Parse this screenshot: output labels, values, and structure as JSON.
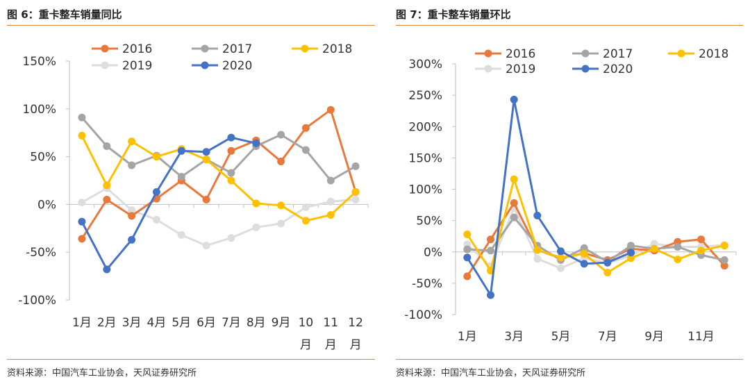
{
  "charts": [
    {
      "title": "图 6：重卡整车销量同比",
      "source": "资料来源：中国汽车工业协会，天风证券研究所"
    },
    {
      "title": "图 7：重卡整车销量环比",
      "source": "资料来源：中国汽车工业协会，天风证券研究所"
    }
  ],
  "chart_data": [
    {
      "type": "line",
      "title": "图 6：重卡整车销量同比",
      "categories": [
        "1月",
        "2月",
        "3月",
        "4月",
        "5月",
        "6月",
        "7月",
        "8月",
        "9月",
        "10月",
        "11月",
        "12月"
      ],
      "y_ticks": [
        "150%",
        "100%",
        "50%",
        "0%",
        "-50%",
        "-100%"
      ],
      "ylim": [
        -100,
        150
      ],
      "legend_position": "top",
      "series": [
        {
          "name": "2016",
          "color": "#E9793A",
          "values": [
            -36,
            5,
            -12,
            6,
            25,
            5,
            56,
            67,
            45,
            80,
            99,
            13
          ]
        },
        {
          "name": "2017",
          "color": "#A5A5A5",
          "values": [
            91,
            61,
            41,
            51,
            29,
            47,
            33,
            61,
            73,
            57,
            25,
            40
          ]
        },
        {
          "name": "2018",
          "color": "#FFC000",
          "values": [
            72,
            20,
            66,
            50,
            58,
            47,
            25,
            1,
            -1,
            -17,
            -11,
            13
          ]
        },
        {
          "name": "2019",
          "color": "#DDDDDD",
          "values": [
            2,
            17,
            -6,
            -16,
            -32,
            -43,
            -35,
            -24,
            -20,
            -3,
            3,
            5
          ]
        },
        {
          "name": "2020",
          "color": "#4472C4",
          "values": [
            -18,
            -68,
            -37,
            13,
            56,
            55,
            70,
            64,
            null,
            null,
            null,
            null
          ]
        }
      ]
    },
    {
      "type": "line",
      "title": "图 7：重卡整车销量环比",
      "categories": [
        "1月",
        "2月",
        "3月",
        "4月",
        "5月",
        "6月",
        "7月",
        "8月",
        "9月",
        "10月",
        "11月",
        "12月"
      ],
      "x_tick_labels": [
        "1月",
        "",
        "3月",
        "",
        "5月",
        "",
        "7月",
        "",
        "9月",
        "",
        "11月",
        ""
      ],
      "y_ticks": [
        "300%",
        "250%",
        "200%",
        "150%",
        "100%",
        "50%",
        "0%",
        "-50%",
        "-100%"
      ],
      "ylim": [
        -100,
        300
      ],
      "legend_position": "top",
      "series": [
        {
          "name": "2016",
          "color": "#E9793A",
          "values": [
            -39,
            20,
            78,
            3,
            -10,
            -2,
            -13,
            5,
            2,
            16,
            20,
            -22
          ]
        },
        {
          "name": "2017",
          "color": "#A5A5A5",
          "values": [
            4,
            2,
            55,
            10,
            -13,
            6,
            -16,
            10,
            5,
            8,
            -5,
            -13
          ]
        },
        {
          "name": "2018",
          "color": "#FFC000",
          "values": [
            28,
            -30,
            116,
            3,
            -9,
            -3,
            -33,
            -10,
            5,
            -12,
            2,
            10
          ]
        },
        {
          "name": "2019",
          "color": "#DDDDDD",
          "values": [
            12,
            -23,
            70,
            -11,
            -26,
            -10,
            -18,
            -6,
            13,
            8,
            8,
            11
          ]
        },
        {
          "name": "2020",
          "color": "#4472C4",
          "values": [
            -9,
            -69,
            243,
            58,
            1,
            -19,
            -17,
            -1,
            null,
            null,
            null,
            null
          ]
        }
      ]
    }
  ]
}
